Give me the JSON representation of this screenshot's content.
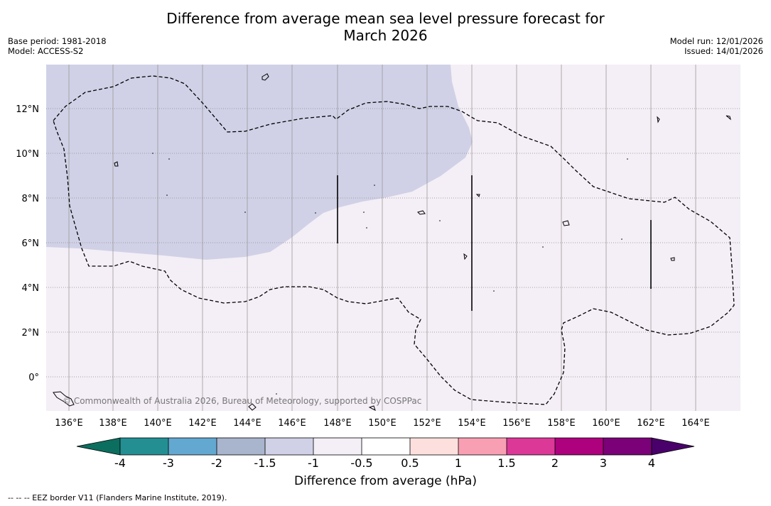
{
  "header": {
    "title_line1": "Difference from average mean sea level pressure forecast for",
    "title_line2": "March 2026",
    "base_period": "Base period: 1981-2018",
    "model": "Model: ACCESS-S2",
    "model_run": "Model run: 12/01/2026",
    "issued": "Issued: 14/01/2026"
  },
  "map": {
    "lat_labels": [
      "12°N",
      "10°N",
      "8°N",
      "6°N",
      "4°N",
      "2°N",
      "0°"
    ],
    "lon_labels": [
      "136°E",
      "138°E",
      "140°E",
      "142°E",
      "144°E",
      "146°E",
      "148°E",
      "150°E",
      "152°E",
      "154°E",
      "156°E",
      "158°E",
      "160°E",
      "162°E",
      "164°E"
    ],
    "colors": {
      "anomaly_minus_1_5_to_minus_1": "#d0d1e6",
      "anomaly_minus_1_to_minus_0_5": "#f4eef6"
    },
    "copyright": "© Commonwealth of Australia 2026, Bureau of Meteorology, supported by COSPPac"
  },
  "colorbar": {
    "tick_labels": [
      "-4",
      "-3",
      "-2",
      "-1.5",
      "-1",
      "-0.5",
      "0.5",
      "1",
      "1.5",
      "2",
      "3",
      "4"
    ],
    "colors": [
      "#0c6e5e",
      "#238f93",
      "#63a8d0",
      "#a9b4cd",
      "#d0d1e6",
      "#f4eef6",
      "#ffffff",
      "#fde0dd",
      "#f99fb4",
      "#dc3898",
      "#ad017e",
      "#7a0177",
      "#4a006a"
    ],
    "title": "Difference from average (hPa)"
  },
  "footnote": "--  --  -- EEZ border V11 (Flanders Marine Institute, 2019)."
}
